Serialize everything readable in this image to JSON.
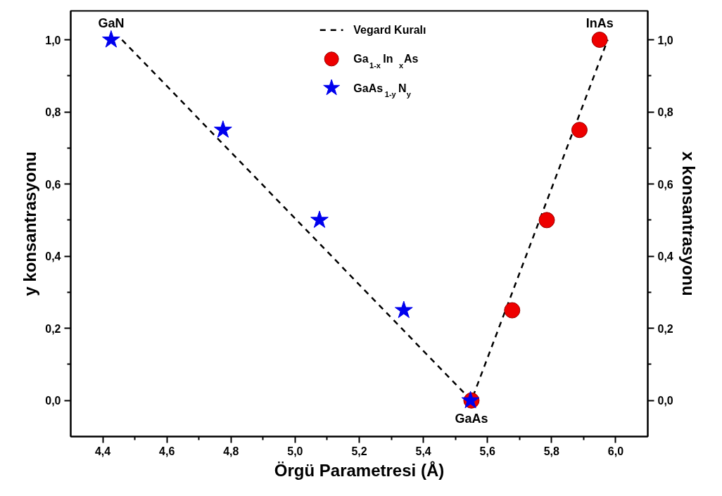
{
  "chart_data": {
    "type": "scatter",
    "xlabel": "Örgü Parametresi (Å)",
    "ylabel": "y konsantrasyonu",
    "y2label": "x konsantrasyonu",
    "xlim": [
      4.3,
      6.1
    ],
    "ylim": [
      -0.1,
      1.08
    ],
    "y2lim": [
      -0.1,
      1.08
    ],
    "xticks": [
      {
        "value": 4.4,
        "label": "4,4"
      },
      {
        "value": 4.5,
        "label": null
      },
      {
        "value": 4.6,
        "label": "4,6"
      },
      {
        "value": 4.7,
        "label": null
      },
      {
        "value": 4.8,
        "label": "4,8"
      },
      {
        "value": 4.9,
        "label": null
      },
      {
        "value": 5.0,
        "label": "5,0"
      },
      {
        "value": 5.1,
        "label": null
      },
      {
        "value": 5.2,
        "label": "5,2"
      },
      {
        "value": 5.3,
        "label": null
      },
      {
        "value": 5.4,
        "label": "5,4"
      },
      {
        "value": 5.5,
        "label": null
      },
      {
        "value": 5.6,
        "label": "5,6"
      },
      {
        "value": 5.7,
        "label": null
      },
      {
        "value": 5.8,
        "label": "5,8"
      },
      {
        "value": 5.9,
        "label": null
      },
      {
        "value": 6.0,
        "label": "6,0"
      }
    ],
    "yticks": [
      {
        "value": 0.0,
        "label": "0,0"
      },
      {
        "value": 0.1,
        "label": null
      },
      {
        "value": 0.2,
        "label": "0,2"
      },
      {
        "value": 0.3,
        "label": null
      },
      {
        "value": 0.4,
        "label": "0,4"
      },
      {
        "value": 0.5,
        "label": null
      },
      {
        "value": 0.6,
        "label": "0,6"
      },
      {
        "value": 0.7,
        "label": null
      },
      {
        "value": 0.8,
        "label": "0,8"
      },
      {
        "value": 0.9,
        "label": null
      },
      {
        "value": 1.0,
        "label": "1,0"
      }
    ],
    "y2ticks": [
      {
        "value": 0.0,
        "label": "0,0"
      },
      {
        "value": 0.1,
        "label": null
      },
      {
        "value": 0.2,
        "label": "0,2"
      },
      {
        "value": 0.3,
        "label": null
      },
      {
        "value": 0.4,
        "label": "0,4"
      },
      {
        "value": 0.5,
        "label": null
      },
      {
        "value": 0.6,
        "label": "0,6"
      },
      {
        "value": 0.7,
        "label": null
      },
      {
        "value": 0.8,
        "label": "0,8"
      },
      {
        "value": 0.9,
        "label": null
      },
      {
        "value": 1.0,
        "label": "1,0"
      }
    ],
    "series": [
      {
        "name": "Vegard Kuralı",
        "type": "line",
        "color": "#000000",
        "line_style": "dashed",
        "marker": "none",
        "x": [
          4.46,
          5.55,
          5.975
        ],
        "values": [
          1.0,
          0.0,
          1.0
        ]
      },
      {
        "name": "Ga$_{1-x}$In$_{x}$As",
        "color": "#ee0000",
        "marker": "circle",
        "axis": "y2",
        "x": [
          5.55,
          5.677,
          5.785,
          5.887,
          5.95
        ],
        "values": [
          0.0,
          0.25,
          0.5,
          0.75,
          1.0
        ]
      },
      {
        "name": "GaAs$_{1-y}$N$_{y}$",
        "color": "#0000ee",
        "marker": "star",
        "x": [
          4.426,
          4.775,
          5.076,
          5.339,
          5.547
        ],
        "values": [
          1.0,
          0.75,
          0.5,
          0.25,
          0.0
        ]
      }
    ],
    "annotations": [
      {
        "text": "GaN",
        "x": 4.426,
        "y": 1.0
      },
      {
        "text": "InAs",
        "x": 5.95,
        "y": 1.0
      },
      {
        "text": "GaAs",
        "x": 5.55,
        "y": 0.0
      }
    ],
    "legend": "top",
    "grid": false
  }
}
